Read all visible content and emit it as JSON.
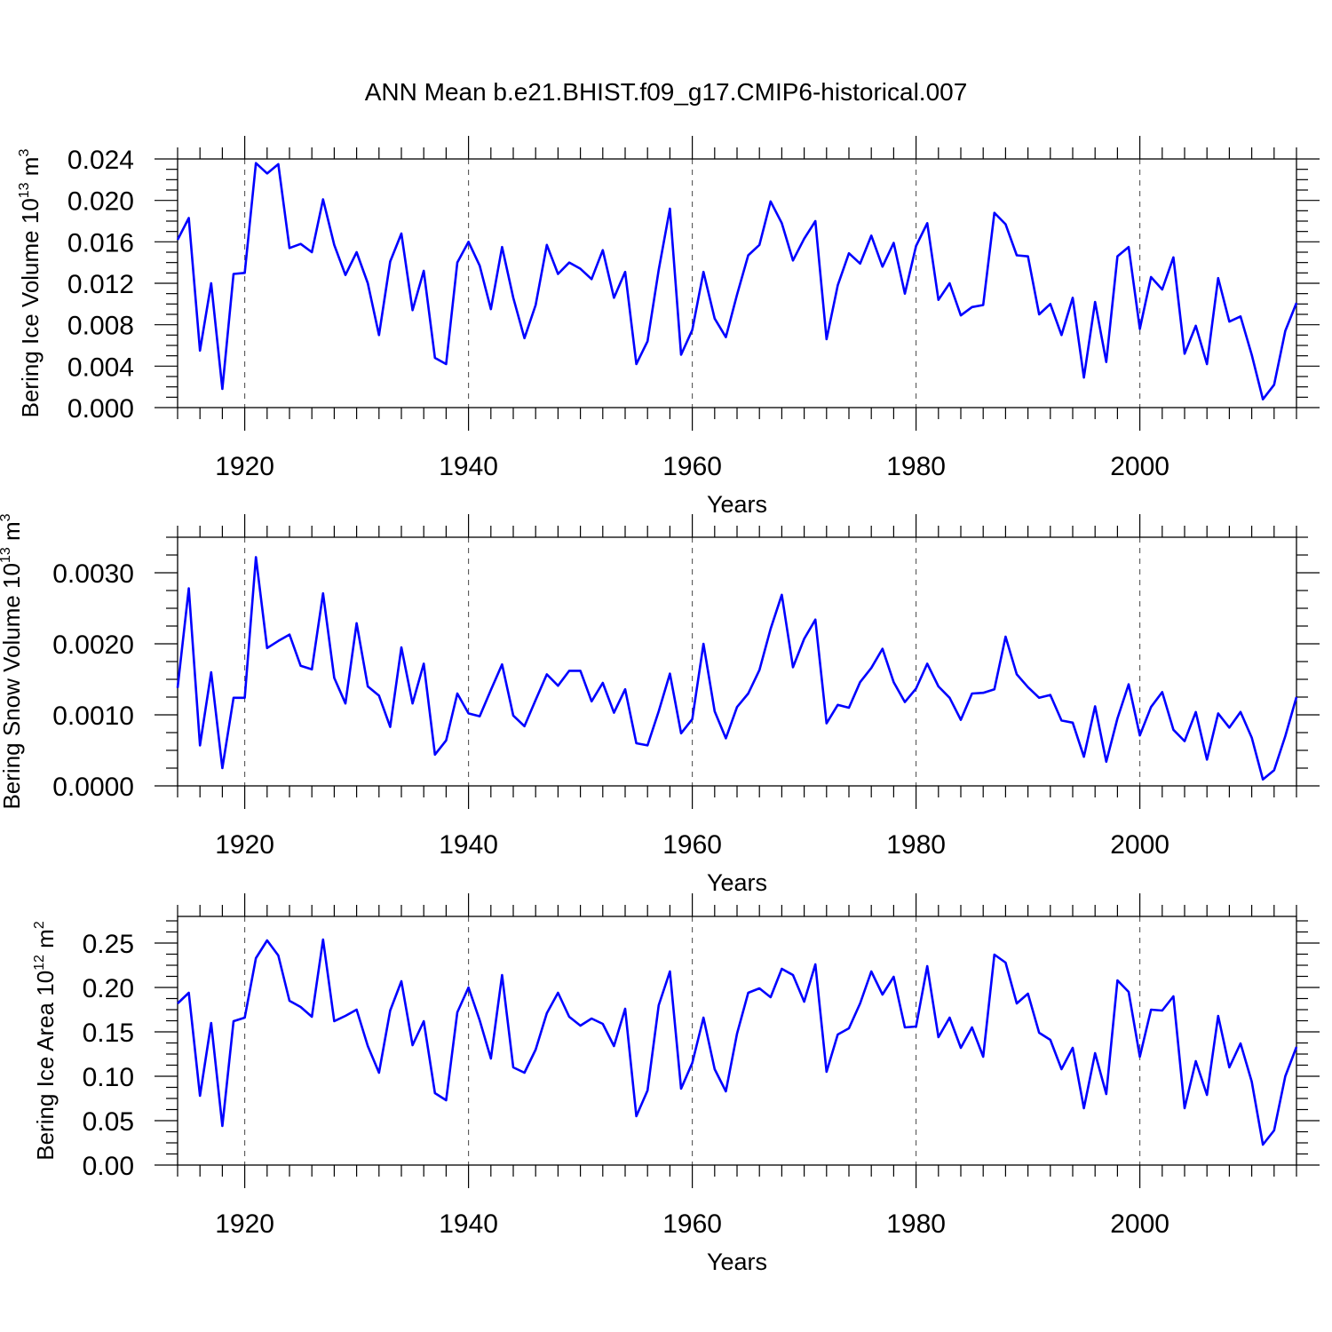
{
  "figure": {
    "title": "ANN Mean b.e21.BHIST.f09_g17.CMIP6-historical.007"
  },
  "chart_data": [
    {
      "type": "line",
      "title": "ANN Mean b.e21.BHIST.f09_g17.CMIP6-historical.007",
      "xlabel": "Years",
      "ylabel_main": "Bering Ice Volume 10",
      "ylabel_exp": "13",
      "ylabel_unit": "m",
      "ylabel_unit_exp": "3",
      "xlim": [
        1914,
        2014
      ],
      "ylim": [
        0.0,
        0.024
      ],
      "xticks": [
        1920,
        1940,
        1960,
        1980,
        2000
      ],
      "xtick_labels": [
        "1920",
        "1940",
        "1960",
        "1980",
        "2000"
      ],
      "yticks": [
        0.0,
        0.004,
        0.008,
        0.012,
        0.016,
        0.02,
        0.024
      ],
      "ytick_labels": [
        "0.000",
        "0.004",
        "0.008",
        "0.012",
        "0.016",
        "0.020",
        "0.024"
      ],
      "series_color": "#0000ff",
      "grid_x": true,
      "x_start": 1914,
      "values": [
        0.0162,
        0.0183,
        0.0055,
        0.012,
        0.0018,
        0.0129,
        0.013,
        0.0236,
        0.0226,
        0.0235,
        0.0154,
        0.0158,
        0.015,
        0.0201,
        0.0157,
        0.0128,
        0.015,
        0.012,
        0.007,
        0.0141,
        0.0168,
        0.0094,
        0.0132,
        0.0048,
        0.0042,
        0.014,
        0.016,
        0.0137,
        0.0095,
        0.0155,
        0.0106,
        0.0067,
        0.0099,
        0.0157,
        0.0129,
        0.014,
        0.0134,
        0.0124,
        0.0152,
        0.0106,
        0.0131,
        0.0042,
        0.0064,
        0.0133,
        0.0192,
        0.0051,
        0.0075,
        0.0131,
        0.0086,
        0.0068,
        0.0109,
        0.0147,
        0.0157,
        0.0199,
        0.0178,
        0.0142,
        0.0163,
        0.018,
        0.0066,
        0.0118,
        0.0149,
        0.0139,
        0.0166,
        0.0136,
        0.0159,
        0.011,
        0.0156,
        0.0178,
        0.0104,
        0.012,
        0.0089,
        0.0097,
        0.0099,
        0.0188,
        0.0177,
        0.0147,
        0.0146,
        0.009,
        0.01,
        0.007,
        0.0106,
        0.0029,
        0.0102,
        0.0044,
        0.0146,
        0.0155,
        0.0076,
        0.0126,
        0.0114,
        0.0145,
        0.0052,
        0.0079,
        0.0042,
        0.0125,
        0.0083,
        0.0088,
        0.0051,
        0.0008,
        0.0022,
        0.0074,
        0.0101
      ]
    },
    {
      "type": "line",
      "xlabel": "Years",
      "ylabel_main": "Bering Snow Volume 10",
      "ylabel_exp": "13",
      "ylabel_unit": "m",
      "ylabel_unit_exp": "3",
      "xlim": [
        1914,
        2014
      ],
      "ylim": [
        0.0,
        0.0035
      ],
      "xticks": [
        1920,
        1940,
        1960,
        1980,
        2000
      ],
      "xtick_labels": [
        "1920",
        "1940",
        "1960",
        "1980",
        "2000"
      ],
      "yticks": [
        0.0,
        0.001,
        0.002,
        0.003
      ],
      "ytick_labels": [
        "0.0000",
        "0.0010",
        "0.0020",
        "0.0030"
      ],
      "series_color": "#0000ff",
      "grid_x": true,
      "x_start": 1914,
      "values": [
        0.00138,
        0.00278,
        0.00057,
        0.0016,
        0.00025,
        0.00124,
        0.00124,
        0.00322,
        0.00194,
        0.00204,
        0.00213,
        0.00169,
        0.00164,
        0.00271,
        0.00152,
        0.00116,
        0.00229,
        0.0014,
        0.00127,
        0.00083,
        0.00195,
        0.00116,
        0.00172,
        0.00044,
        0.00064,
        0.0013,
        0.00102,
        0.00098,
        0.00135,
        0.00171,
        0.00099,
        0.00084,
        0.00121,
        0.00157,
        0.00141,
        0.00162,
        0.00162,
        0.00119,
        0.00145,
        0.00103,
        0.00136,
        0.0006,
        0.00057,
        0.00105,
        0.00158,
        0.00074,
        0.00094,
        0.002,
        0.00105,
        0.00067,
        0.00111,
        0.0013,
        0.00163,
        0.00221,
        0.00269,
        0.00167,
        0.00207,
        0.00234,
        0.00088,
        0.00114,
        0.0011,
        0.00146,
        0.00166,
        0.00193,
        0.00146,
        0.00118,
        0.00137,
        0.00172,
        0.0014,
        0.00124,
        0.00093,
        0.0013,
        0.00131,
        0.00136,
        0.0021,
        0.00157,
        0.00139,
        0.00124,
        0.00128,
        0.00092,
        0.00089,
        0.00041,
        0.00112,
        0.00034,
        0.00095,
        0.00143,
        0.00071,
        0.00111,
        0.00132,
        0.00079,
        0.00063,
        0.00104,
        0.00037,
        0.00102,
        0.00082,
        0.00104,
        0.00068,
        9e-05,
        0.00022,
        0.0007,
        0.00125
      ]
    },
    {
      "type": "line",
      "xlabel": "Years",
      "ylabel_main": "Bering Ice Area 10",
      "ylabel_exp": "12",
      "ylabel_unit": "m",
      "ylabel_unit_exp": "2",
      "xlim": [
        1914,
        2014
      ],
      "ylim": [
        0.0,
        0.28
      ],
      "xticks": [
        1920,
        1940,
        1960,
        1980,
        2000
      ],
      "xtick_labels": [
        "1920",
        "1940",
        "1960",
        "1980",
        "2000"
      ],
      "yticks": [
        0.0,
        0.05,
        0.1,
        0.15,
        0.2,
        0.25
      ],
      "ytick_labels": [
        "0.00",
        "0.05",
        "0.10",
        "0.15",
        "0.20",
        "0.25"
      ],
      "series_color": "#0000ff",
      "grid_x": true,
      "x_start": 1914,
      "values": [
        0.182,
        0.194,
        0.078,
        0.16,
        0.044,
        0.162,
        0.166,
        0.233,
        0.253,
        0.236,
        0.185,
        0.178,
        0.167,
        0.254,
        0.162,
        0.168,
        0.175,
        0.134,
        0.104,
        0.174,
        0.207,
        0.135,
        0.162,
        0.081,
        0.073,
        0.172,
        0.2,
        0.163,
        0.12,
        0.214,
        0.11,
        0.104,
        0.13,
        0.171,
        0.194,
        0.167,
        0.157,
        0.165,
        0.159,
        0.134,
        0.176,
        0.055,
        0.084,
        0.18,
        0.218,
        0.086,
        0.115,
        0.166,
        0.108,
        0.083,
        0.148,
        0.194,
        0.199,
        0.189,
        0.221,
        0.214,
        0.184,
        0.226,
        0.105,
        0.147,
        0.154,
        0.182,
        0.218,
        0.192,
        0.212,
        0.155,
        0.156,
        0.224,
        0.144,
        0.166,
        0.132,
        0.155,
        0.122,
        0.237,
        0.228,
        0.182,
        0.193,
        0.149,
        0.141,
        0.108,
        0.132,
        0.064,
        0.126,
        0.08,
        0.208,
        0.195,
        0.122,
        0.175,
        0.174,
        0.19,
        0.064,
        0.117,
        0.079,
        0.168,
        0.11,
        0.137,
        0.094,
        0.023,
        0.039,
        0.1,
        0.133
      ]
    }
  ]
}
